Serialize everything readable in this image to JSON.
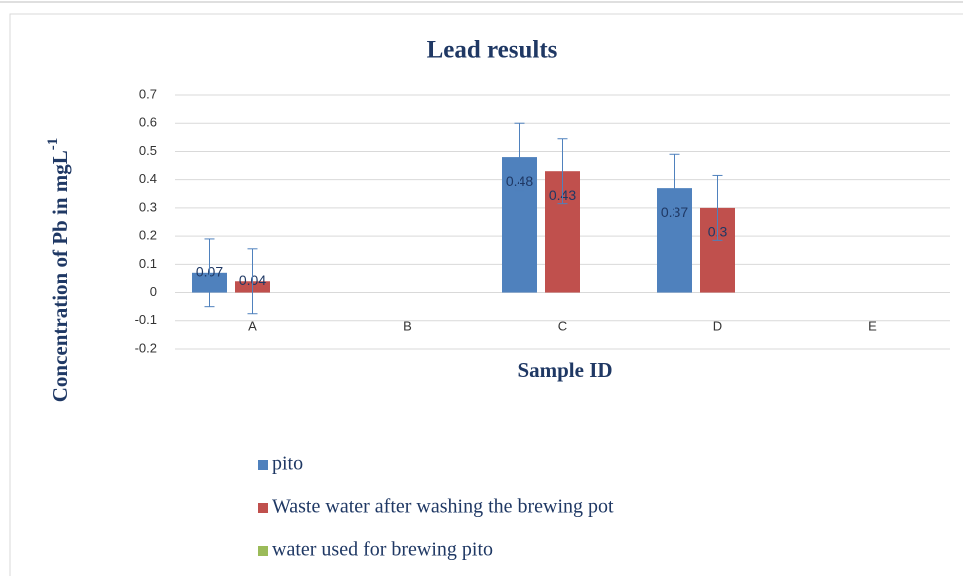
{
  "chart_data": {
    "type": "bar",
    "title": "Lead results",
    "xlabel": "Sample ID",
    "ylabel": "Concentration of Pb in mgL",
    "ylabel_superscript": "-1",
    "categories": [
      "A",
      "B",
      "C",
      "D",
      "E"
    ],
    "series": [
      {
        "name": "pito",
        "color": "#4f81bd",
        "values": [
          0.07,
          null,
          0.48,
          0.37,
          null
        ],
        "errors": [
          0.12,
          null,
          0.12,
          0.12,
          null
        ]
      },
      {
        "name": "Waste water after washing the brewing pot",
        "color": "#c0504d",
        "values": [
          0.04,
          null,
          0.43,
          0.3,
          null
        ],
        "errors": [
          0.115,
          null,
          0.115,
          0.115,
          null
        ]
      },
      {
        "name": "water used for brewing pito",
        "color": "#9bbb59",
        "values": [
          null,
          null,
          null,
          null,
          null
        ]
      }
    ],
    "ylim": [
      -0.2,
      0.7
    ],
    "yticks": [
      -0.2,
      -0.1,
      0,
      0.1,
      0.2,
      0.3,
      0.4,
      0.5,
      0.6,
      0.7
    ],
    "grid": true,
    "legend": "bottom"
  }
}
